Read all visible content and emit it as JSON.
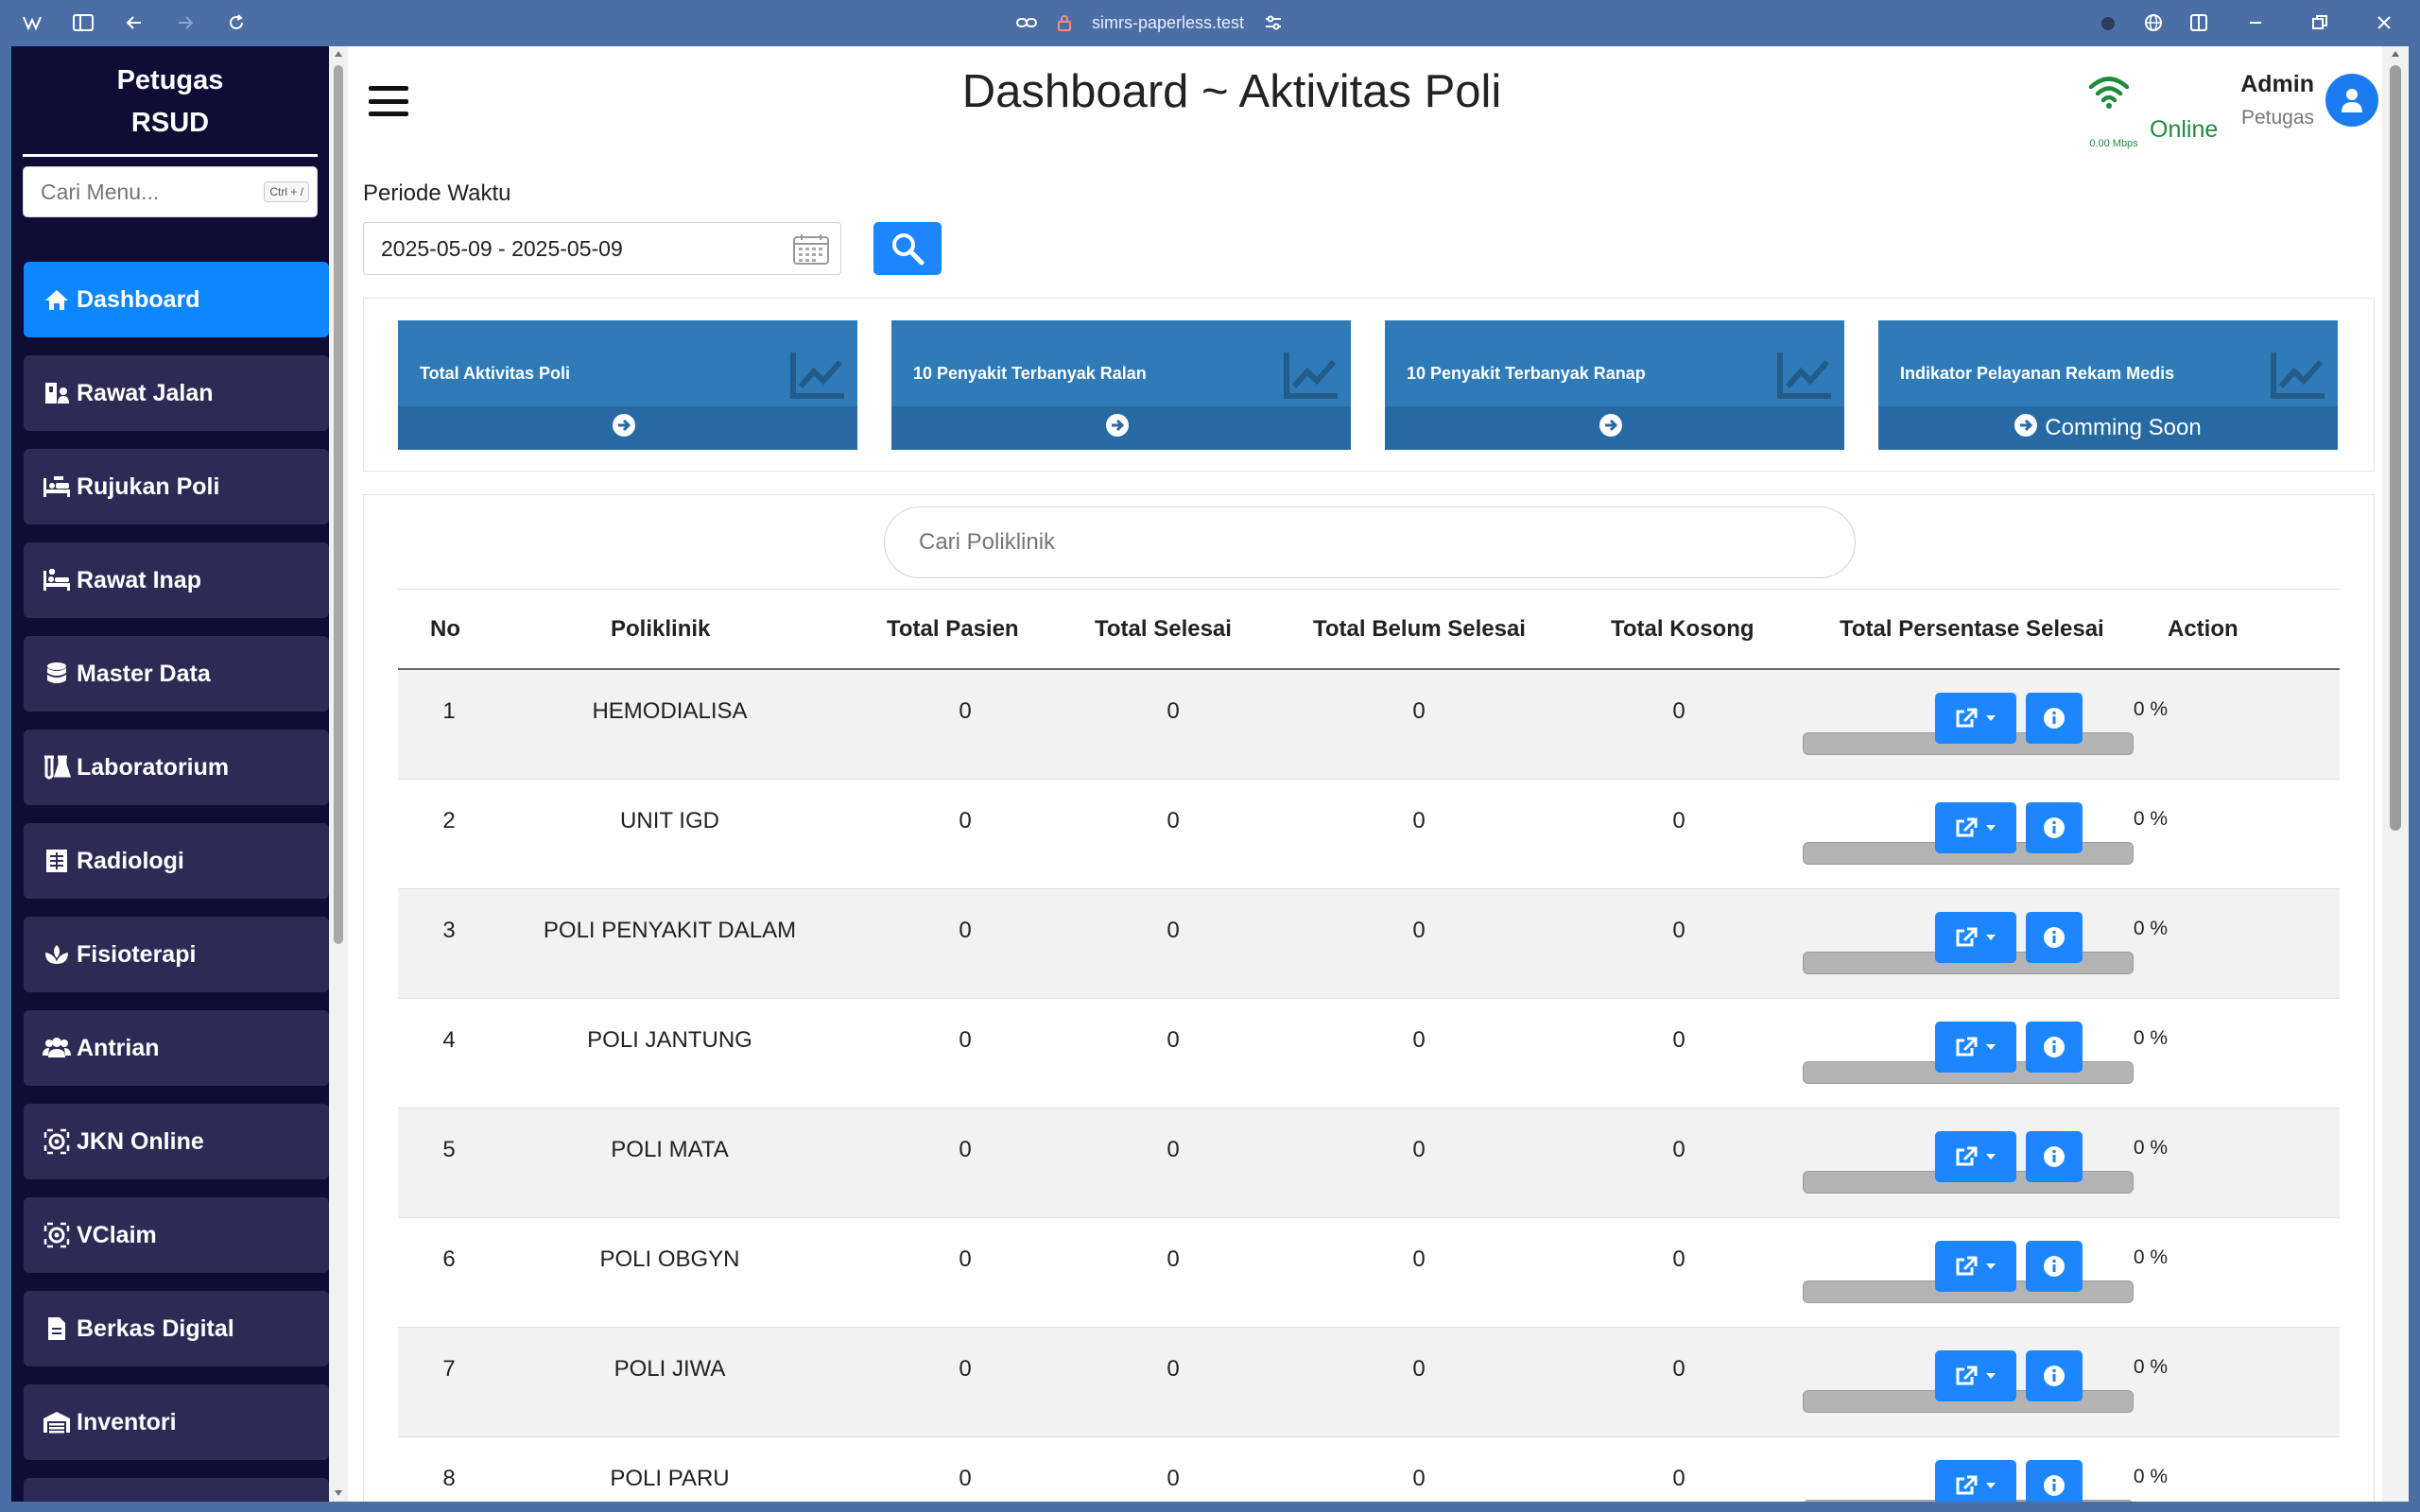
{
  "browser": {
    "url": "simrs-paperless.test"
  },
  "sidebar": {
    "brand_line1": "Petugas",
    "brand_line2": "RSUD",
    "search_placeholder": "Cari Menu...",
    "search_shortcut": "Ctrl + /",
    "items": [
      {
        "label": "Dashboard",
        "icon": "home-icon",
        "active": true
      },
      {
        "label": "Rawat Jalan",
        "icon": "hospital-user-icon"
      },
      {
        "label": "Rujukan Poli",
        "icon": "procedures-icon"
      },
      {
        "label": "Rawat Inap",
        "icon": "bed-icon"
      },
      {
        "label": "Master Data",
        "icon": "database-icon"
      },
      {
        "label": "Laboratorium",
        "icon": "flask-icon"
      },
      {
        "label": "Radiologi",
        "icon": "x-ray-icon"
      },
      {
        "label": "Fisioterapi",
        "icon": "spa-icon"
      },
      {
        "label": "Antrian",
        "icon": "users-icon"
      },
      {
        "label": "JKN Online",
        "icon": "gear-icon"
      },
      {
        "label": "VClaim",
        "icon": "gear-icon"
      },
      {
        "label": "Berkas Digital",
        "icon": "file-icon"
      },
      {
        "label": "Inventori",
        "icon": "warehouse-icon"
      }
    ]
  },
  "header": {
    "title": "Dashboard ~ Aktivitas Poli",
    "speed": "0.00 Mbps",
    "status": "Online",
    "user_name": "Admin",
    "user_role": "Petugas"
  },
  "filter": {
    "label": "Periode Waktu",
    "date_range": "2025-05-09 - 2025-05-09"
  },
  "cards": [
    {
      "title": "Total Aktivitas Poli",
      "footer": ""
    },
    {
      "title": "10 Penyakit Terbanyak Ralan",
      "footer": ""
    },
    {
      "title": "10 Penyakit Terbanyak Ranap",
      "footer": ""
    },
    {
      "title": "Indikator Pelayanan Rekam Medis",
      "footer": "Comming Soon"
    }
  ],
  "table": {
    "search_placeholder": "Cari Poliklinik",
    "columns": [
      "No",
      "Poliklinik",
      "Total Pasien",
      "Total Selesai",
      "Total Belum Selesai",
      "Total Kosong",
      "Total Persentase Selesai",
      "Action"
    ],
    "rows": [
      {
        "no": "1",
        "poli": "HEMODIALISA",
        "pasien": "0",
        "selesai": "0",
        "belum": "0",
        "kosong": "0",
        "persen": "0 %",
        "progress": 0
      },
      {
        "no": "2",
        "poli": "UNIT IGD",
        "pasien": "0",
        "selesai": "0",
        "belum": "0",
        "kosong": "0",
        "persen": "0 %",
        "progress": 0
      },
      {
        "no": "3",
        "poli": "POLI PENYAKIT DALAM",
        "pasien": "0",
        "selesai": "0",
        "belum": "0",
        "kosong": "0",
        "persen": "0 %",
        "progress": 0
      },
      {
        "no": "4",
        "poli": "POLI JANTUNG",
        "pasien": "0",
        "selesai": "0",
        "belum": "0",
        "kosong": "0",
        "persen": "0 %",
        "progress": 0
      },
      {
        "no": "5",
        "poli": "POLI MATA",
        "pasien": "0",
        "selesai": "0",
        "belum": "0",
        "kosong": "0",
        "persen": "0 %",
        "progress": 0
      },
      {
        "no": "6",
        "poli": "POLI OBGYN",
        "pasien": "0",
        "selesai": "0",
        "belum": "0",
        "kosong": "0",
        "persen": "0 %",
        "progress": 0
      },
      {
        "no": "7",
        "poli": "POLI JIWA",
        "pasien": "0",
        "selesai": "0",
        "belum": "0",
        "kosong": "0",
        "persen": "0 %",
        "progress": 0
      },
      {
        "no": "8",
        "poli": "POLI PARU",
        "pasien": "0",
        "selesai": "0",
        "belum": "0",
        "kosong": "0",
        "persen": "0 %",
        "progress": 0
      }
    ]
  },
  "colors": {
    "sidebar_bg": "#0f0c36",
    "nav_item": "#2d2b55",
    "accent": "#0d86ff",
    "card": "#2f7bb8",
    "online": "#1f8a3a"
  }
}
